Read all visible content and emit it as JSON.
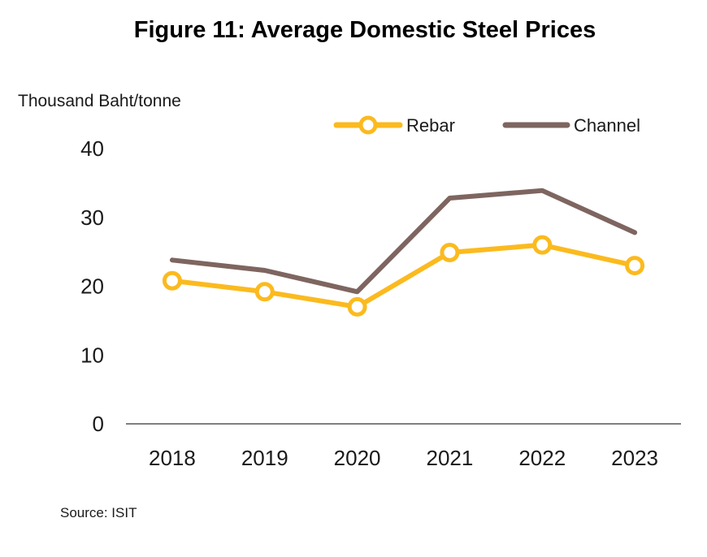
{
  "chart_data": {
    "type": "line",
    "title": "Figure 11: Average Domestic Steel Prices",
    "ylabel": "Thousand Baht/tonne",
    "xlabel": "",
    "categories": [
      "2018",
      "2019",
      "2020",
      "2021",
      "2022",
      "2023"
    ],
    "yticks": [
      "0",
      "10",
      "20",
      "30",
      "40"
    ],
    "ylim": [
      0,
      40
    ],
    "grid": false,
    "legend_position": "top-right",
    "series": [
      {
        "name": "Rebar",
        "values": [
          20.8,
          19.2,
          17.0,
          24.9,
          26.0,
          23.0
        ],
        "color": "#FBBA1E",
        "marker": "circle-hollow"
      },
      {
        "name": "Channel",
        "values": [
          23.8,
          22.3,
          19.2,
          32.8,
          33.9,
          27.8
        ],
        "color": "#7E6560",
        "marker": "none"
      }
    ],
    "source": "Source: ISIT"
  }
}
